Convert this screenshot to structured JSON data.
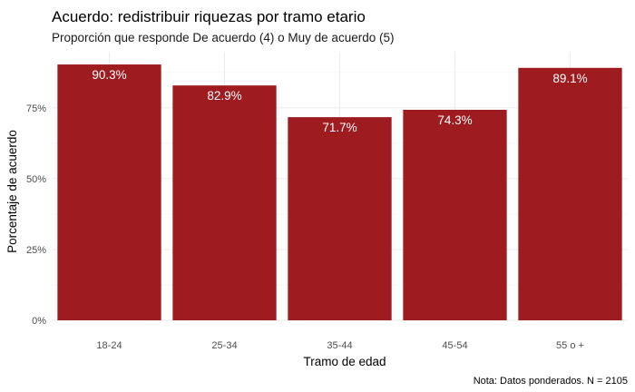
{
  "chart_data": {
    "type": "bar",
    "title": "Acuerdo: redistribuir riquezas por tramo etario",
    "subtitle": "Proporción que responde De acuerdo (4) o Muy de acuerdo (5)",
    "xlabel": "Tramo de edad",
    "ylabel": "Porcentaje de acuerdo",
    "caption": "Nota: Datos ponderados. N = 2105",
    "categories": [
      "18-24",
      "25-34",
      "35-44",
      "45-54",
      "55 o +"
    ],
    "values": [
      90.3,
      82.9,
      71.7,
      74.3,
      89.1
    ],
    "data_labels": [
      "90.3%",
      "82.9%",
      "71.7%",
      "74.3%",
      "89.1%"
    ],
    "y_ticks": [
      0,
      25,
      50,
      75
    ],
    "y_tick_labels": [
      "0%",
      "25%",
      "50%",
      "75%"
    ],
    "ylim": [
      0,
      94.8
    ],
    "grid": true,
    "legend": "none",
    "colors": {
      "bar": "#9E1B1F",
      "grid_major": "#ebebeb",
      "grid_minor": "#f4f4f4",
      "bar_label": "#ffffff"
    }
  }
}
